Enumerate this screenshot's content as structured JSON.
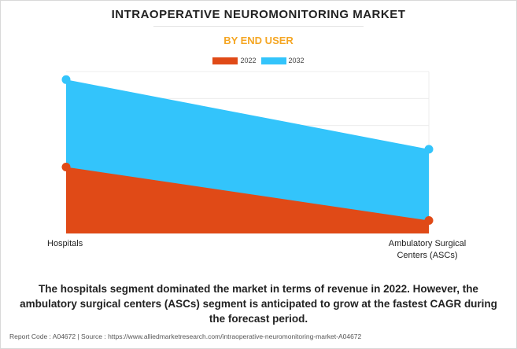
{
  "title": "INTRAOPERATIVE NEUROMONITORING MARKET",
  "subtitle": "BY END USER",
  "colors": {
    "series_2022": "#e04a17",
    "series_2032": "#33c4fb",
    "subtitle": "#f5a623"
  },
  "chart_data": {
    "type": "area",
    "categories": [
      "Hospitals",
      "Ambulatory Surgical Centers (ASCs)"
    ],
    "series": [
      {
        "name": "2022",
        "values": [
          0.41,
          0.08
        ]
      },
      {
        "name": "2032",
        "values": [
          0.95,
          0.52
        ]
      }
    ],
    "ylim": [
      0,
      1
    ],
    "grid": true,
    "legend_position": "top-center",
    "xlabel": "",
    "ylabel": ""
  },
  "caption": "The hospitals segment dominated the market in terms of revenue in 2022. However, the ambulatory surgical centers (ASCs) segment is anticipated to grow at the fastest CAGR during the forecast period.",
  "footer": "Report Code : A04672  |  Source : https://www.alliedmarketresearch.com/intraoperative-neuromonitoring-market-A04672"
}
